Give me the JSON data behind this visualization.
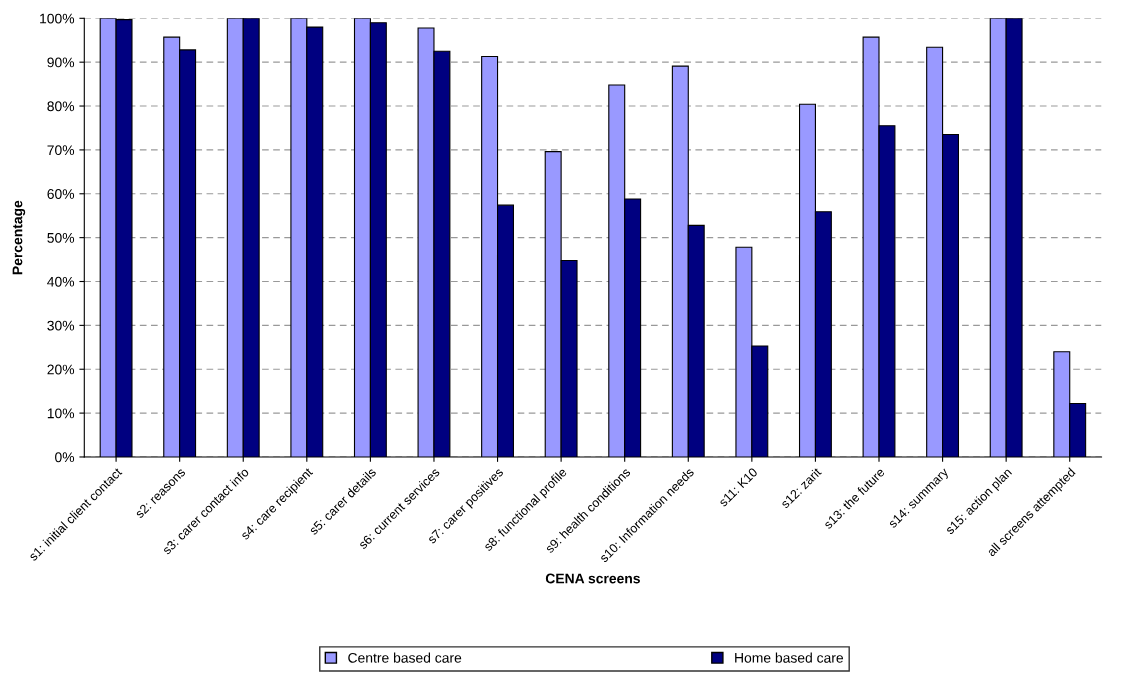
{
  "chart_data": {
    "type": "bar",
    "xlabel": "CENA screens",
    "ylabel": "Percentage",
    "categories": [
      "s1: initial client contact",
      "s2: reasons",
      "s3: carer contact info",
      "s4: care recipient",
      "s5: carer details",
      "s6: current services",
      "s7: carer positives",
      "s8: functional profile",
      "s9: health conditions",
      "s10: Information needs",
      "s11: K10",
      "s12: zarit",
      "s13: the future",
      "s14: summary",
      "s15: action plan",
      "all screens attempted"
    ],
    "series": [
      {
        "name": "Centre based care",
        "color": "#9999ff",
        "values": [
          100,
          95.7,
          100,
          100,
          100,
          97.8,
          91.3,
          69.6,
          84.8,
          89.1,
          47.8,
          80.4,
          95.7,
          93.4,
          100,
          24.0
        ]
      },
      {
        "name": "Home based care",
        "color": "#000080",
        "values": [
          99.7,
          92.8,
          100,
          98.0,
          99.0,
          92.5,
          57.4,
          44.8,
          58.8,
          52.8,
          25.3,
          55.9,
          75.5,
          73.5,
          100,
          12.2
        ]
      }
    ],
    "ylim": [
      0,
      100
    ],
    "yticks": [
      {
        "value": 0,
        "label": "0%"
      },
      {
        "value": 10,
        "label": "10%"
      },
      {
        "value": 20,
        "label": "20%"
      },
      {
        "value": 30,
        "label": "30%"
      },
      {
        "value": 40,
        "label": "40%"
      },
      {
        "value": 50,
        "label": "50%"
      },
      {
        "value": 60,
        "label": "60%"
      },
      {
        "value": 70,
        "label": "70%"
      },
      {
        "value": 80,
        "label": "80%"
      },
      {
        "value": 90,
        "label": "90%"
      },
      {
        "value": 100,
        "label": "100%"
      }
    ],
    "grid": "y",
    "legend": "bottom"
  }
}
